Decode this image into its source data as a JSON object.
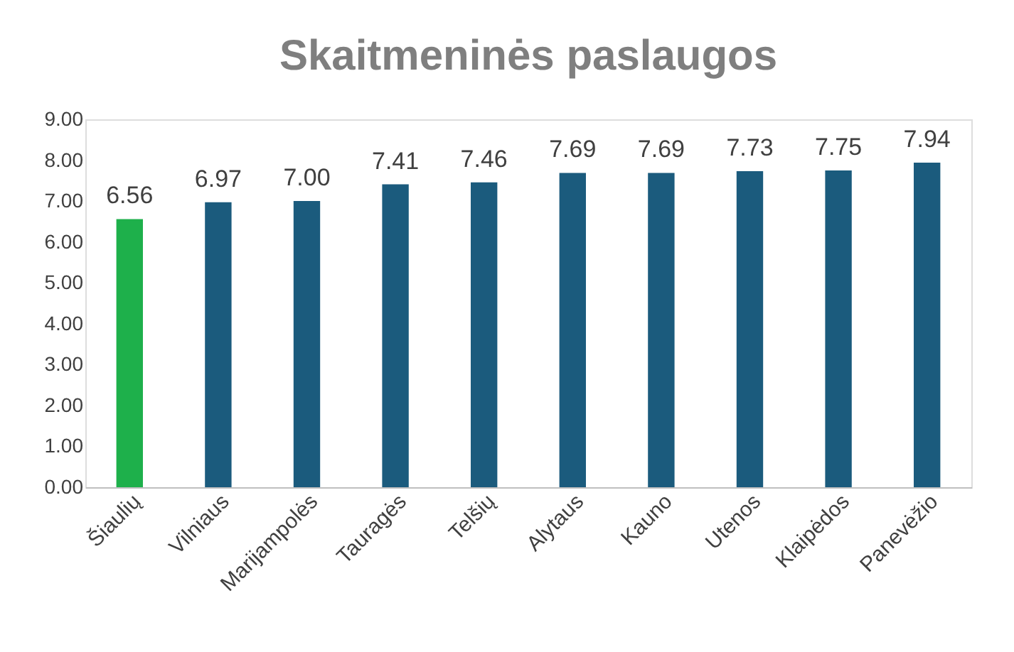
{
  "chart_data": {
    "type": "bar",
    "title": "Skaitmeninės paslaugos",
    "categories": [
      "Šiaulių",
      "Vilniaus",
      "Marijampolės",
      "Tauragės",
      "Telšių",
      "Alytaus",
      "Kauno",
      "Utenos",
      "Klaipėdos",
      "Panevėžio"
    ],
    "values": [
      6.56,
      6.97,
      7.0,
      7.41,
      7.46,
      7.69,
      7.69,
      7.73,
      7.75,
      7.94
    ],
    "colors": [
      "#1eb04b",
      "#1b5b7d",
      "#1b5b7d",
      "#1b5b7d",
      "#1b5b7d",
      "#1b5b7d",
      "#1b5b7d",
      "#1b5b7d",
      "#1b5b7d",
      "#1b5b7d"
    ],
    "value_labels": [
      "6.56",
      "6.97",
      "7.00",
      "7.41",
      "7.46",
      "7.69",
      "7.69",
      "7.73",
      "7.75",
      "7.94"
    ],
    "ylim": [
      0,
      9
    ],
    "yticks": [
      {
        "value": 0,
        "label": "0.00"
      },
      {
        "value": 1,
        "label": "1.00"
      },
      {
        "value": 2,
        "label": "2.00"
      },
      {
        "value": 3,
        "label": "3.00"
      },
      {
        "value": 4,
        "label": "4.00"
      },
      {
        "value": 5,
        "label": "5.00"
      },
      {
        "value": 6,
        "label": "6.00"
      },
      {
        "value": 7,
        "label": "7.00"
      },
      {
        "value": 8,
        "label": "8.00"
      },
      {
        "value": 9,
        "label": "9.00"
      }
    ],
    "grid": false
  }
}
